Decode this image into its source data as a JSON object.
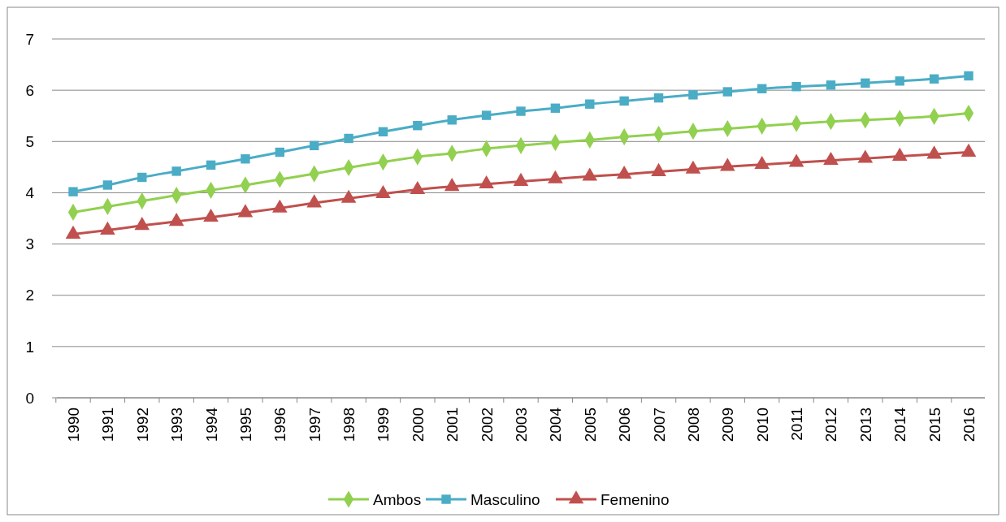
{
  "chart_data": {
    "type": "line",
    "categories": [
      "1990",
      "1991",
      "1992",
      "1993",
      "1994",
      "1995",
      "1996",
      "1997",
      "1998",
      "1999",
      "2000",
      "2001",
      "2002",
      "2003",
      "2004",
      "2005",
      "2006",
      "2007",
      "2008",
      "2009",
      "2010",
      "2011",
      "2012",
      "2013",
      "2014",
      "2015",
      "2016"
    ],
    "series": [
      {
        "name": "Ambos",
        "color": "#92d050",
        "marker": "diamond",
        "values": [
          3.62,
          3.73,
          3.84,
          3.95,
          4.05,
          4.15,
          4.26,
          4.37,
          4.49,
          4.6,
          4.7,
          4.77,
          4.86,
          4.92,
          4.98,
          5.03,
          5.09,
          5.14,
          5.2,
          5.25,
          5.3,
          5.35,
          5.39,
          5.42,
          5.45,
          5.49,
          5.55
        ]
      },
      {
        "name": "Masculino",
        "color": "#4bacc6",
        "marker": "square",
        "values": [
          4.02,
          4.15,
          4.3,
          4.42,
          4.54,
          4.66,
          4.79,
          4.92,
          5.06,
          5.19,
          5.31,
          5.42,
          5.51,
          5.59,
          5.65,
          5.73,
          5.79,
          5.85,
          5.91,
          5.97,
          6.03,
          6.07,
          6.1,
          6.14,
          6.18,
          6.22,
          6.28
        ]
      },
      {
        "name": "Femenino",
        "color": "#c0504d",
        "marker": "triangle",
        "values": [
          3.19,
          3.27,
          3.36,
          3.44,
          3.52,
          3.61,
          3.7,
          3.8,
          3.89,
          3.98,
          4.06,
          4.12,
          4.17,
          4.22,
          4.27,
          4.32,
          4.36,
          4.41,
          4.46,
          4.51,
          4.55,
          4.59,
          4.63,
          4.67,
          4.71,
          4.75,
          4.79
        ]
      }
    ],
    "ylim": [
      0,
      7
    ],
    "yticks": [
      0,
      1,
      2,
      3,
      4,
      5,
      6,
      7
    ],
    "grid": "y",
    "legend": "bottom",
    "line_style": "solid"
  }
}
